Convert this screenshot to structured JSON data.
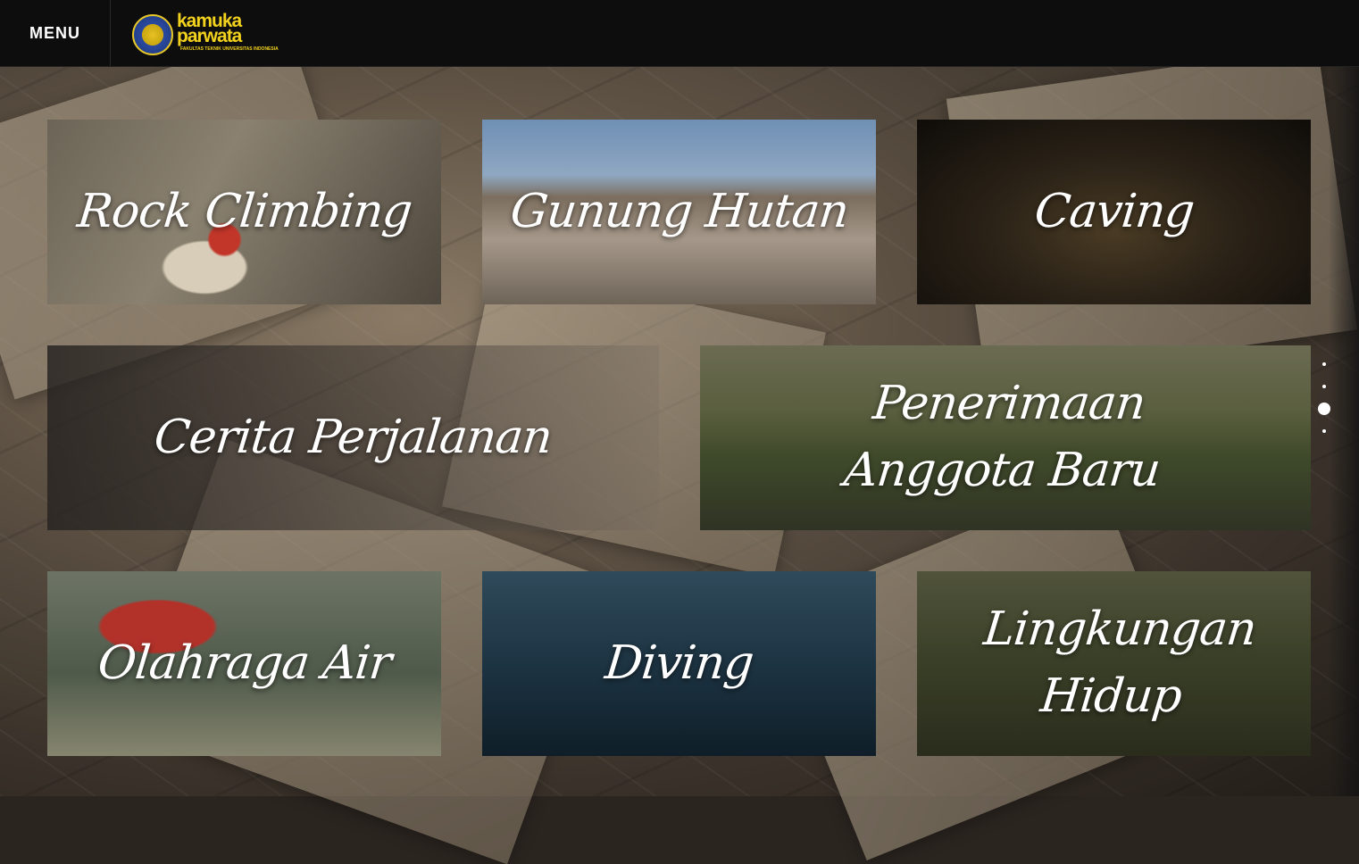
{
  "header": {
    "menu_label": "MENU",
    "logo": {
      "line1": "kamuka",
      "line2": "parwata",
      "sub": "FAKULTAS TEKNIK UNIVERSITAS INDONESIA",
      "accent_color": "#f3d21e"
    }
  },
  "tiles": [
    {
      "id": "rock-climbing",
      "label": "Rock Climbing"
    },
    {
      "id": "gunung-hutan",
      "label": "Gunung Hutan"
    },
    {
      "id": "caving",
      "label": "Caving"
    },
    {
      "id": "cerita-perjalanan",
      "label": "Cerita Perjalanan"
    },
    {
      "id": "penerimaan-anggota-baru",
      "label": "Penerimaan Anggota Baru"
    },
    {
      "id": "olahraga-air",
      "label": "Olahraga Air"
    },
    {
      "id": "diving",
      "label": "Diving"
    },
    {
      "id": "lingkungan-hidup",
      "label": "Lingkungan Hidup"
    }
  ],
  "pagination": {
    "count": 4,
    "active_index": 2
  }
}
